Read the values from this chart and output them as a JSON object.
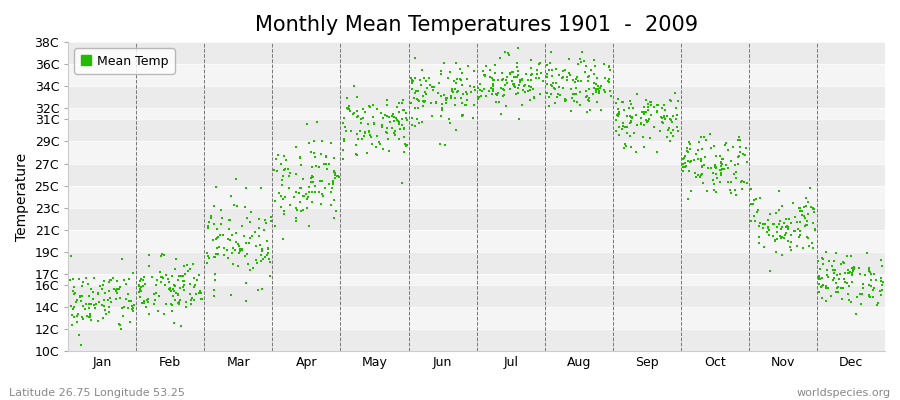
{
  "title": "Monthly Mean Temperatures 1901  -  2009",
  "ylabel": "Temperature",
  "subtitle_left": "Latitude 26.75 Longitude 53.25",
  "subtitle_right": "worldspecies.org",
  "legend_label": "Mean Temp",
  "dot_color": "#22BB00",
  "background_color": "#ffffff",
  "plot_bg_color": "#ffffff",
  "stripe_colors": [
    "#ebebeb",
    "#f5f5f5"
  ],
  "ylim": [
    10,
    38
  ],
  "ytick_labels": [
    "38C",
    "36C",
    "34C",
    "32C",
    "31C",
    "29C",
    "27C",
    "25C",
    "23C",
    "21C",
    "19C",
    "17C",
    "16C",
    "14C",
    "12C",
    "10C"
  ],
  "ytick_values": [
    38,
    36,
    34,
    32,
    31,
    29,
    27,
    25,
    23,
    21,
    19,
    17,
    16,
    14,
    12,
    10
  ],
  "month_names": [
    "Jan",
    "Feb",
    "Mar",
    "Apr",
    "May",
    "Jun",
    "Jul",
    "Aug",
    "Sep",
    "Oct",
    "Nov",
    "Dec"
  ],
  "month_mean_temps": [
    14.5,
    15.5,
    20.0,
    25.5,
    30.5,
    33.0,
    34.5,
    34.0,
    31.0,
    27.0,
    21.5,
    16.5
  ],
  "month_std": [
    1.5,
    1.5,
    2.0,
    2.0,
    1.5,
    1.5,
    1.2,
    1.2,
    1.3,
    1.5,
    1.5,
    1.2
  ],
  "n_years": 109,
  "dot_size": 4,
  "title_fontsize": 15,
  "axis_label_fontsize": 10,
  "tick_fontsize": 9,
  "legend_fontsize": 9,
  "vline_positions": [
    1,
    2,
    3,
    4,
    5,
    6,
    7,
    8,
    9,
    10,
    11
  ],
  "xlim": [
    0,
    12
  ]
}
